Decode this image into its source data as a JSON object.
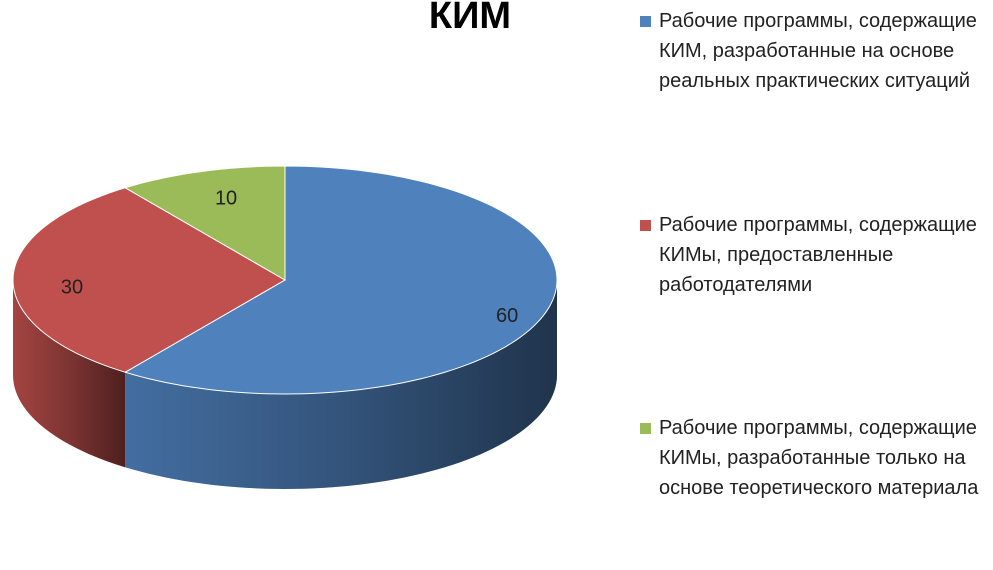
{
  "chart_data": {
    "type": "pie",
    "title": "КИМ",
    "categories": [
      "Рабочие программы, содержащие КИМ, разработанные на основе реальных практических ситуаций",
      "Рабочие программы, содержащие КИМы, предоставленные работодателями",
      "Рабочие программы, содержащие КИМы, разработанные только на основе теоретического материала"
    ],
    "values": [
      60,
      30,
      10
    ],
    "colors": [
      "#4f81bd",
      "#c0504d",
      "#9bbb59"
    ],
    "legend": "right"
  }
}
